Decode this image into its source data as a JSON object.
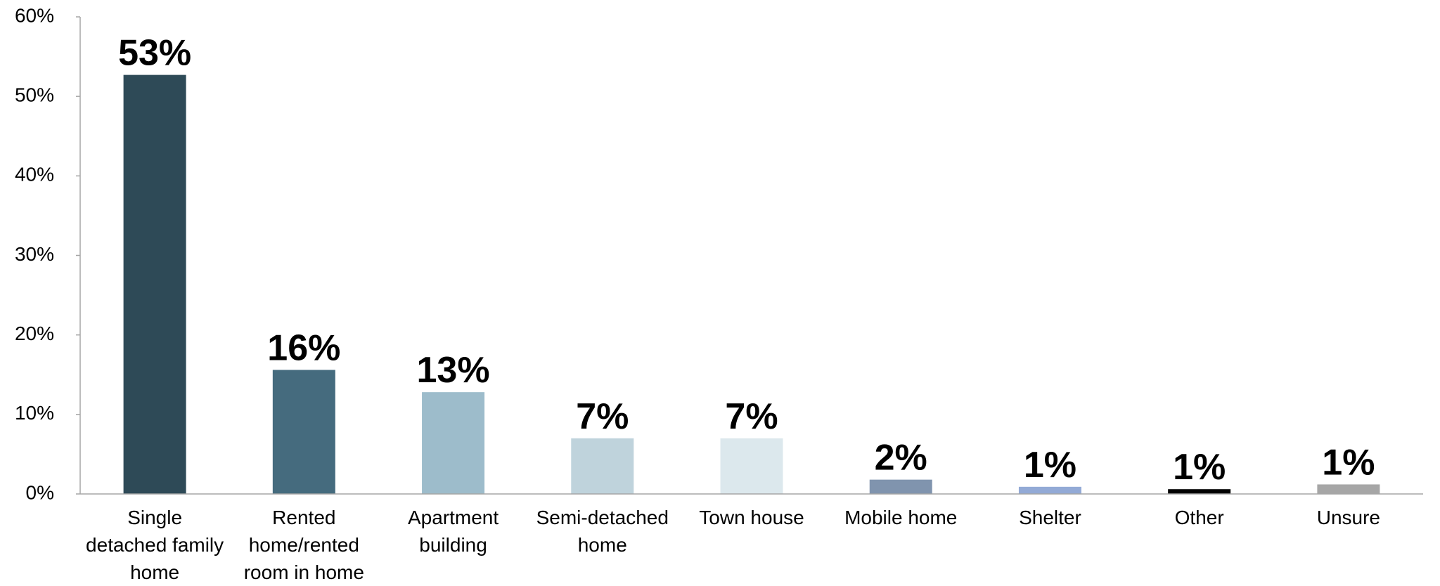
{
  "chart_data": {
    "type": "bar",
    "categories": [
      "Single detached family home",
      "Rented home/rented room in home",
      "Apartment building",
      "Semi-detached home",
      "Town house",
      "Mobile home",
      "Shelter",
      "Other",
      "Unsure"
    ],
    "values": [
      52.7,
      15.6,
      12.8,
      7.0,
      7.0,
      1.8,
      0.9,
      0.6,
      1.2
    ],
    "value_labels": [
      "53%",
      "16%",
      "13%",
      "7%",
      "7%",
      "2%",
      "1%",
      "1%",
      "1%"
    ],
    "colors": [
      "#2e4a57",
      "#456b7e",
      "#9dbccb",
      "#bfd3dc",
      "#dce8ed",
      "#8094ae",
      "#93aad6",
      "#000000",
      "#a6a6a6"
    ],
    "ylim": [
      0,
      60
    ],
    "yticks": [
      {
        "value": 0,
        "label": "0%"
      },
      {
        "value": 10,
        "label": "10%"
      },
      {
        "value": 20,
        "label": "20%"
      },
      {
        "value": 30,
        "label": "30%"
      },
      {
        "value": 40,
        "label": "40%"
      },
      {
        "value": 50,
        "label": "50%"
      },
      {
        "value": 60,
        "label": "60%"
      }
    ],
    "grid": false
  }
}
